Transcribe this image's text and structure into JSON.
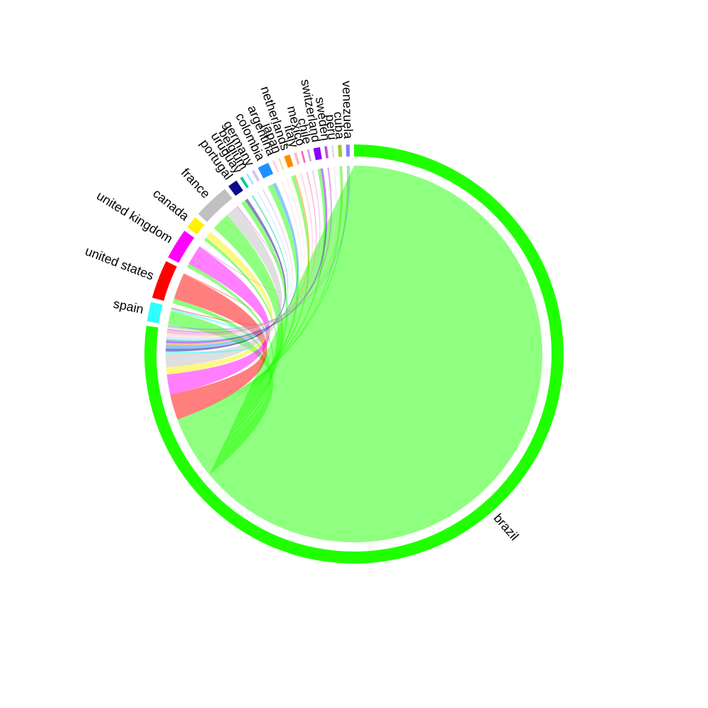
{
  "chart_data": {
    "type": "chord",
    "title": "",
    "sectors": [
      {
        "name": "brazil",
        "value": 14965,
        "color": "#1FFF00"
      },
      {
        "name": "spain",
        "value": 295,
        "color": "#2EFFFF"
      },
      {
        "name": "united states",
        "value": 575,
        "color": "#FF0000"
      },
      {
        "name": "united kingdom",
        "value": 460,
        "color": "#FF00FF"
      },
      {
        "name": "canada",
        "value": 190,
        "color": "#FFF200"
      },
      {
        "name": "france",
        "value": 540,
        "color": "#C0C0C0"
      },
      {
        "name": "portugal",
        "value": 145,
        "color": "#0A0A8C"
      },
      {
        "name": "uruguay",
        "value": 40,
        "color": "#00C8A0"
      },
      {
        "name": "belgium",
        "value": 30,
        "color": "#9FE8FF"
      },
      {
        "name": "germany",
        "value": 40,
        "color": "#D8C0F0"
      },
      {
        "name": "colombia",
        "value": 170,
        "color": "#1E90FF"
      },
      {
        "name": "argentina",
        "value": 30,
        "color": "#FFD0E0"
      },
      {
        "name": "japan",
        "value": 25,
        "color": "#F0E0A0"
      },
      {
        "name": "netherlands",
        "value": 90,
        "color": "#FF8C00"
      },
      {
        "name": "italy",
        "value": 40,
        "color": "#FFB6C1"
      },
      {
        "name": "mexico",
        "value": 30,
        "color": "#FF69B4"
      },
      {
        "name": "chile",
        "value": 30,
        "color": "#DDA0DD"
      },
      {
        "name": "switzerland",
        "value": 100,
        "color": "#8A00FF"
      },
      {
        "name": "sweden",
        "value": 40,
        "color": "#BA55D3"
      },
      {
        "name": "peru",
        "value": 30,
        "color": "#E0E0E0"
      },
      {
        "name": "cuba",
        "value": 55,
        "color": "#9ACD32"
      },
      {
        "name": "venezuela",
        "value": 55,
        "color": "#8080FF"
      }
    ],
    "links": [
      {
        "from": "brazil",
        "to": "brazil",
        "value": 12400
      },
      {
        "from": "brazil",
        "to": "spain",
        "value": 230
      },
      {
        "from": "brazil",
        "to": "united states",
        "value": 80
      },
      {
        "from": "brazil",
        "to": "united kingdom",
        "value": 60
      },
      {
        "from": "brazil",
        "to": "canada",
        "value": 50
      },
      {
        "from": "brazil",
        "to": "france",
        "value": 300
      },
      {
        "from": "brazil",
        "to": "portugal",
        "value": 80
      },
      {
        "from": "brazil",
        "to": "colombia",
        "value": 90
      },
      {
        "from": "brazil",
        "to": "netherlands",
        "value": 50
      },
      {
        "from": "brazil",
        "to": "switzerland",
        "value": 50
      },
      {
        "from": "brazil",
        "to": "cuba",
        "value": 30
      },
      {
        "from": "brazil",
        "to": "venezuela",
        "value": 30
      },
      {
        "from": "united states",
        "to": "brazil",
        "value": 430
      },
      {
        "from": "united kingdom",
        "to": "brazil",
        "value": 330
      },
      {
        "from": "canada",
        "to": "brazil",
        "value": 120
      },
      {
        "from": "france",
        "to": "brazil",
        "value": 220
      },
      {
        "from": "spain",
        "to": "brazil",
        "value": 40
      },
      {
        "from": "portugal",
        "to": "brazil",
        "value": 50
      },
      {
        "from": "colombia",
        "to": "brazil",
        "value": 60
      },
      {
        "from": "netherlands",
        "to": "brazil",
        "value": 30
      },
      {
        "from": "switzerland",
        "to": "brazil",
        "value": 40
      },
      {
        "from": "uruguay",
        "to": "brazil",
        "value": 25
      },
      {
        "from": "belgium",
        "to": "brazil",
        "value": 20
      },
      {
        "from": "germany",
        "to": "brazil",
        "value": 25
      },
      {
        "from": "argentina",
        "to": "brazil",
        "value": 20
      },
      {
        "from": "japan",
        "to": "brazil",
        "value": 15
      },
      {
        "from": "italy",
        "to": "brazil",
        "value": 25
      },
      {
        "from": "mexico",
        "to": "brazil",
        "value": 20
      },
      {
        "from": "chile",
        "to": "brazil",
        "value": 20
      },
      {
        "from": "sweden",
        "to": "brazil",
        "value": 25
      },
      {
        "from": "peru",
        "to": "brazil",
        "value": 20
      },
      {
        "from": "cuba",
        "to": "brazil",
        "value": 20
      },
      {
        "from": "venezuela",
        "to": "brazil",
        "value": 20
      },
      {
        "from": "united states",
        "to": "spain",
        "value": 15
      },
      {
        "from": "united kingdom",
        "to": "france",
        "value": 10
      }
    ]
  }
}
